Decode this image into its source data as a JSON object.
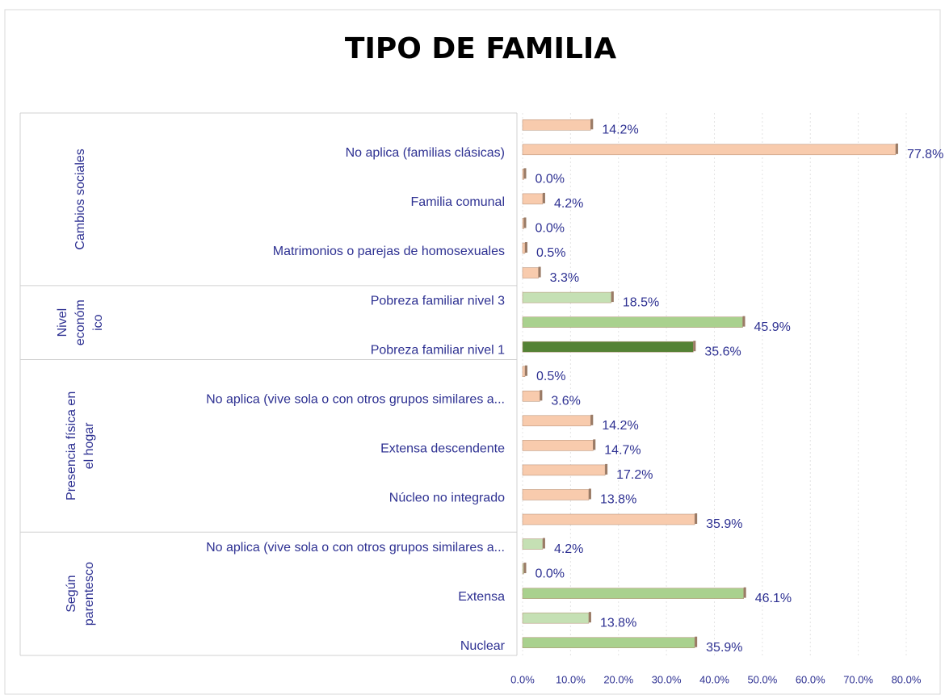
{
  "chart_data": {
    "type": "grouped-hbar",
    "title": "TIPO DE FAMILIA",
    "xlim": [
      0,
      80
    ],
    "xticks": [
      {
        "value": 0,
        "label": "0.0%"
      },
      {
        "value": 10,
        "label": "10.0%"
      },
      {
        "value": 20,
        "label": "20.0%"
      },
      {
        "value": 30,
        "label": "30.0%"
      },
      {
        "value": 40,
        "label": "40.0%"
      },
      {
        "value": 50,
        "label": "50.0%"
      },
      {
        "value": 60,
        "label": "60.0%"
      },
      {
        "value": 70,
        "label": "70.0%"
      },
      {
        "value": 80,
        "label": "80.0%"
      }
    ],
    "grid": true,
    "groups": [
      {
        "label_lines": [
          "Cambios sociales"
        ],
        "categories": [
          null,
          "No aplica (familias clásicas)",
          null,
          "Familia comunal",
          null,
          "Matrimonios o parejas de homosexuales",
          null
        ],
        "values": [
          14.2,
          77.8,
          0.0,
          4.2,
          0.0,
          0.5,
          3.3
        ],
        "value_labels": [
          "14.2%",
          "77.8%",
          "0.0%",
          "4.2%",
          "0.0%",
          "0.5%",
          "3.3%"
        ],
        "colors": [
          "#f8cbad",
          "#f8cbad",
          "#f8cbad",
          "#f8cbad",
          "#f8cbad",
          "#f8cbad",
          "#f8cbad"
        ]
      },
      {
        "label_lines": [
          "Nivel",
          "económ",
          "ico"
        ],
        "categories": [
          "Pobreza familiar nivel 3",
          null,
          "Pobreza familiar nivel 1"
        ],
        "values": [
          18.5,
          45.9,
          35.6
        ],
        "value_labels": [
          "18.5%",
          "45.9%",
          "35.6%"
        ],
        "colors": [
          "#c5e0b4",
          "#a9d18e",
          "#548235"
        ]
      },
      {
        "label_lines": [
          "Presencia física en",
          "el hogar"
        ],
        "categories": [
          null,
          "No aplica (vive sola o con otros grupos similares a...",
          null,
          "Extensa descendente",
          null,
          "Núcleo no integrado",
          null
        ],
        "values": [
          0.5,
          3.6,
          14.2,
          14.7,
          17.2,
          13.8,
          35.9
        ],
        "value_labels": [
          "0.5%",
          "3.6%",
          "14.2%",
          "14.7%",
          "17.2%",
          "13.8%",
          "35.9%"
        ],
        "colors": [
          "#f8cbad",
          "#f8cbad",
          "#f8cbad",
          "#f8cbad",
          "#f8cbad",
          "#f8cbad",
          "#f8cbad"
        ]
      },
      {
        "label_lines": [
          "Según",
          "parentesco"
        ],
        "categories": [
          "No aplica (vive sola o con otros grupos similares a...",
          null,
          "Extensa",
          null,
          "Nuclear"
        ],
        "values": [
          4.2,
          0.0,
          46.1,
          13.8,
          35.9
        ],
        "value_labels": [
          "4.2%",
          "0.0%",
          "46.1%",
          "13.8%",
          "35.9%"
        ],
        "colors": [
          "#c5e0b4",
          "#c5e0b4",
          "#a9d18e",
          "#c5e0b4",
          "#a9d18e"
        ]
      }
    ]
  }
}
